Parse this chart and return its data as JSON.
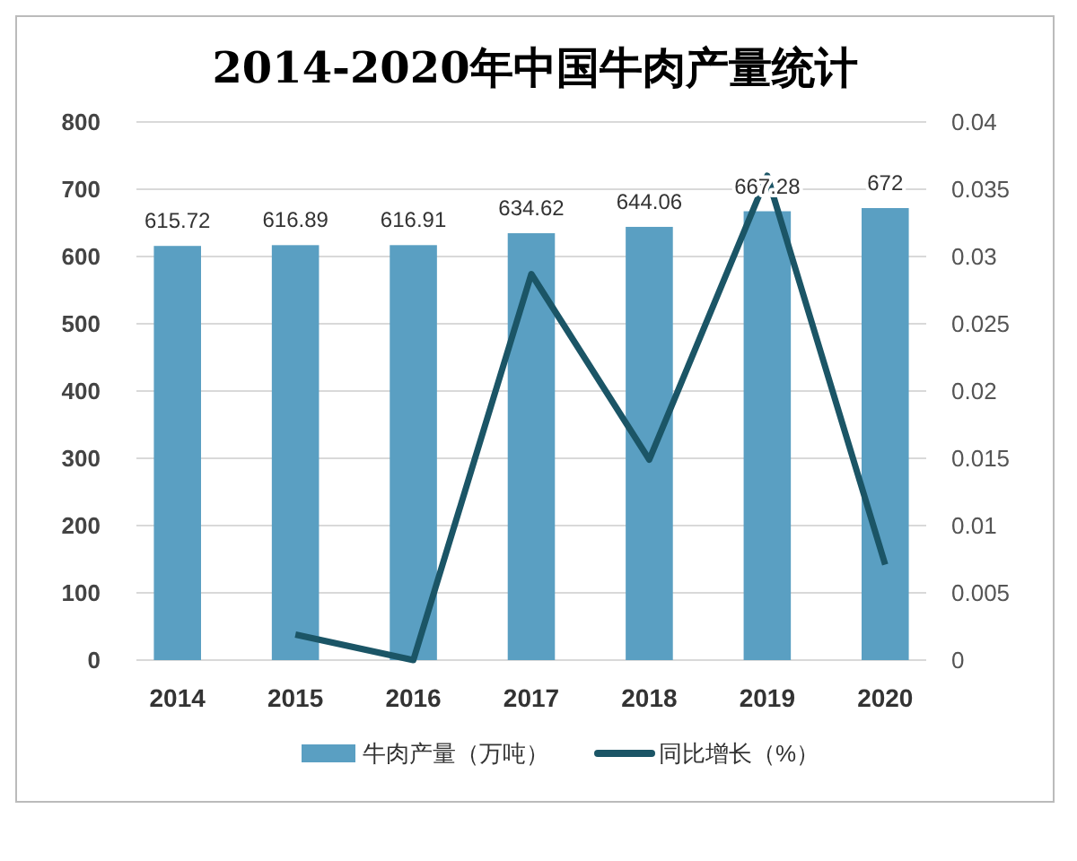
{
  "chart_data": {
    "type": "bar",
    "title": "2014-2020年中国牛肉产量统计",
    "categories": [
      "2014",
      "2015",
      "2016",
      "2017",
      "2018",
      "2019",
      "2020"
    ],
    "series": [
      {
        "name": "牛肉产量（万吨）",
        "color": "#5a9fc2",
        "values": [
          615.72,
          616.89,
          616.91,
          634.62,
          644.06,
          667.28,
          672
        ],
        "data_labels": true
      },
      {
        "name": "同比增长（%）",
        "type": "line",
        "axis": "y2",
        "color": "#1b5566",
        "values": [
          null,
          0.0019,
          0,
          0.0287,
          0.0149,
          0.036,
          0.0071
        ]
      }
    ],
    "ylim": [
      0,
      800
    ],
    "yticks": [
      0,
      100,
      200,
      300,
      400,
      500,
      600,
      700,
      800
    ],
    "y2lim": [
      0,
      0.04
    ],
    "y2ticks": [
      0,
      0.005,
      0.01,
      0.015,
      0.02,
      0.025,
      0.03,
      0.035,
      0.04
    ],
    "grid": "y",
    "legend": "bottom",
    "marker": "none",
    "line_style": "solid"
  }
}
